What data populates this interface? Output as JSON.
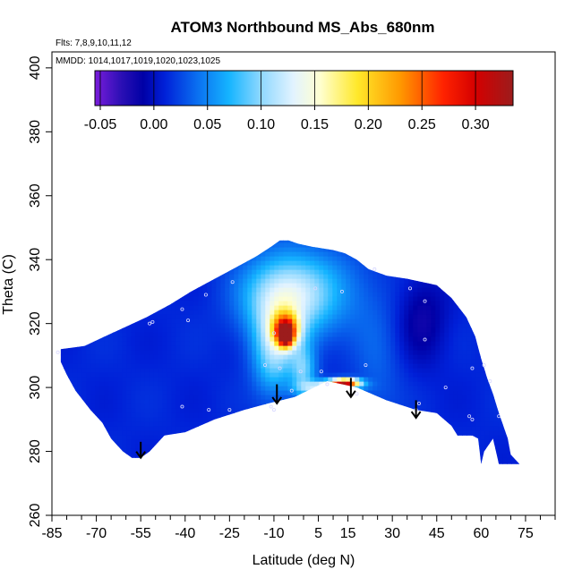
{
  "chart_data": {
    "type": "heatmap",
    "title": "ATOM3 Northbound MS_Abs_680nm",
    "flights_note": "Flts: 7,8,9,10,11,12",
    "dates_note": "MMDD: 1014,1017,1019,1020,1023,1025",
    "xlabel": "Latitude (deg N)",
    "ylabel": "Theta (C)",
    "xlim": [
      -85,
      85
    ],
    "ylim": [
      260,
      405
    ],
    "x_ticks": [
      -85,
      -70,
      -55,
      -40,
      -25,
      -10,
      5,
      15,
      30,
      45,
      60,
      75
    ],
    "x_tick_labels": [
      "-85",
      "-70",
      "-55",
      "-40",
      "-25",
      "-10",
      "5",
      "15",
      "30",
      "45",
      "60",
      "75"
    ],
    "x_minor_step": 5,
    "y_ticks": [
      260,
      280,
      300,
      320,
      340,
      360,
      380,
      400
    ],
    "y_tick_labels": [
      "260",
      "280",
      "300",
      "320",
      "340",
      "360",
      "380",
      "400"
    ],
    "colorbar": {
      "range": [
        -0.055,
        0.335
      ],
      "ticks": [
        -0.05,
        0.0,
        0.05,
        0.1,
        0.15,
        0.2,
        0.25,
        0.3
      ],
      "tick_labels": [
        "-0.05",
        "0.00",
        "0.05",
        "0.10",
        "0.15",
        "0.20",
        "0.25",
        "0.30"
      ],
      "color_stops": [
        {
          "v": -0.055,
          "c": "#7a1cdb"
        },
        {
          "v": -0.03,
          "c": "#2a0fb4"
        },
        {
          "v": -0.01,
          "c": "#0000a6"
        },
        {
          "v": 0.01,
          "c": "#0020d8"
        },
        {
          "v": 0.04,
          "c": "#0a6ef0"
        },
        {
          "v": 0.07,
          "c": "#15b4ff"
        },
        {
          "v": 0.1,
          "c": "#8fd8ff"
        },
        {
          "v": 0.13,
          "c": "#e2f3ff"
        },
        {
          "v": 0.155,
          "c": "#ffffd0"
        },
        {
          "v": 0.19,
          "c": "#ffe82a"
        },
        {
          "v": 0.23,
          "c": "#ff9800"
        },
        {
          "v": 0.27,
          "c": "#ff2200"
        },
        {
          "v": 0.3,
          "c": "#d40000"
        },
        {
          "v": 0.335,
          "c": "#9c1c1c"
        }
      ]
    },
    "field": {
      "outline": [
        [
          -82,
          312
        ],
        [
          -74,
          313
        ],
        [
          -67,
          316
        ],
        [
          -60,
          319
        ],
        [
          -53,
          322
        ],
        [
          -45,
          326
        ],
        [
          -38,
          330
        ],
        [
          -30,
          334
        ],
        [
          -22,
          338
        ],
        [
          -16,
          341
        ],
        [
          -11,
          344
        ],
        [
          -8,
          346
        ],
        [
          -5,
          346
        ],
        [
          -2,
          345
        ],
        [
          3,
          344
        ],
        [
          10,
          343
        ],
        [
          14,
          342
        ],
        [
          18,
          340
        ],
        [
          22,
          337
        ],
        [
          28,
          335
        ],
        [
          35,
          334
        ],
        [
          45,
          332
        ],
        [
          50,
          328
        ],
        [
          55,
          322
        ],
        [
          58,
          316
        ],
        [
          60,
          309
        ],
        [
          62,
          303
        ],
        [
          64,
          298
        ],
        [
          66,
          292
        ],
        [
          69,
          284
        ],
        [
          70,
          279
        ],
        [
          73,
          276
        ],
        [
          66,
          276
        ],
        [
          64,
          284
        ],
        [
          61,
          280
        ],
        [
          60,
          276
        ],
        [
          59,
          284
        ],
        [
          57,
          285
        ],
        [
          52,
          285
        ],
        [
          50,
          288
        ],
        [
          45,
          292
        ],
        [
          38,
          293
        ],
        [
          28,
          296
        ],
        [
          18,
          300
        ],
        [
          13,
          301
        ],
        [
          8,
          302
        ],
        [
          -3,
          297
        ],
        [
          -12,
          295
        ],
        [
          -20,
          293
        ],
        [
          -30,
          290
        ],
        [
          -40,
          286
        ],
        [
          -47,
          285
        ],
        [
          -52,
          280
        ],
        [
          -55,
          278
        ],
        [
          -58,
          278
        ],
        [
          -61,
          280
        ],
        [
          -65,
          284
        ],
        [
          -68,
          289
        ],
        [
          -72,
          293
        ],
        [
          -77,
          299
        ],
        [
          -80,
          304
        ],
        [
          -82,
          308
        ]
      ],
      "features": [
        {
          "x": -6,
          "y": 318,
          "v": 0.23,
          "sx": 3,
          "sy": 3.5
        },
        {
          "x": -6,
          "y": 316,
          "v": 0.26,
          "sx": 1.5,
          "sy": 2
        },
        {
          "x": -7,
          "y": 327,
          "v": 0.11,
          "sx": 9,
          "sy": 9
        },
        {
          "x": -10,
          "y": 310,
          "v": 0.1,
          "sx": 5,
          "sy": 9
        },
        {
          "x": 0,
          "y": 305,
          "v": 0.09,
          "sx": 3,
          "sy": 6
        },
        {
          "x": 14,
          "y": 301.5,
          "v": 0.3,
          "sx": 3.5,
          "sy": 0.9
        },
        {
          "x": 9,
          "y": 300,
          "v": 0.16,
          "sx": 6,
          "sy": 1.4
        },
        {
          "x": 2,
          "y": 330,
          "v": 0.07,
          "sx": 14,
          "sy": 10
        },
        {
          "x": 25,
          "y": 305,
          "v": 0.035,
          "sx": 6,
          "sy": 15
        },
        {
          "x": 40,
          "y": 322,
          "v": -0.02,
          "sx": 6,
          "sy": 10
        }
      ],
      "base_value": 0.012
    },
    "sample_points": [
      [
        -83,
        311
      ],
      [
        -52,
        320
      ],
      [
        -51,
        320.5
      ],
      [
        -41,
        324.5
      ],
      [
        -33,
        329
      ],
      [
        -24,
        333
      ],
      [
        -10,
        317
      ],
      [
        -13,
        307
      ],
      [
        -8,
        306
      ],
      [
        -4,
        299
      ],
      [
        -1,
        305
      ],
      [
        6,
        305
      ],
      [
        8,
        301
      ],
      [
        21,
        307
      ],
      [
        13,
        330
      ],
      [
        24,
        337
      ],
      [
        36,
        331
      ],
      [
        41,
        327
      ],
      [
        41,
        315
      ],
      [
        48,
        300
      ],
      [
        57,
        306
      ],
      [
        61,
        307
      ],
      [
        63,
        302
      ],
      [
        66,
        291
      ],
      [
        56,
        291
      ],
      [
        57,
        290
      ],
      [
        -41,
        294
      ],
      [
        -32,
        293
      ],
      [
        -25,
        293
      ],
      [
        39,
        295
      ],
      [
        38,
        293
      ],
      [
        4,
        331
      ],
      [
        -39,
        321
      ],
      [
        -10,
        293
      ],
      [
        -11,
        294
      ],
      [
        18,
        298
      ]
    ],
    "arrows": [
      {
        "x": -55,
        "y_top": 283,
        "y_tip": 278
      },
      {
        "x": -9,
        "y_top": 301,
        "y_tip": 295
      },
      {
        "x": 16,
        "y_top": 303,
        "y_tip": 297
      },
      {
        "x": 38,
        "y_top": 296,
        "y_tip": 290.5
      }
    ],
    "grid": false
  }
}
